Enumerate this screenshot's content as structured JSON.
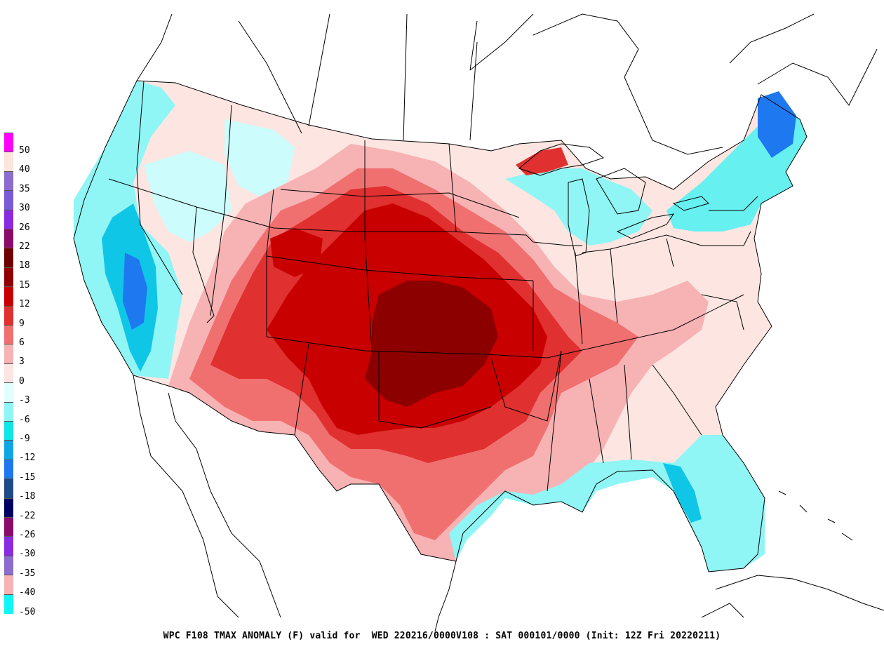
{
  "caption": "WPC F108 TMAX ANOMALY (F) valid for  WED 220216/0000V108 : SAT 000101/0000 (Init: 12Z Fri 20220211)",
  "legend": {
    "labels": [
      "50",
      "40",
      "35",
      "30",
      "26",
      "22",
      "18",
      "15",
      "12",
      "9",
      "6",
      "3",
      "0",
      "-3",
      "-6",
      "-9",
      "-12",
      "-15",
      "-18",
      "-22",
      "-26",
      "-30",
      "-35",
      "-40",
      "-50"
    ],
    "colors": [
      "#ff00ff",
      "#ffe4dc",
      "#8c6ccc",
      "#7a5ad6",
      "#8a2be2",
      "#8b0a6a",
      "#6e0000",
      "#900000",
      "#c80000",
      "#e03030",
      "#f07070",
      "#f7b2b4",
      "#fde6e2",
      "#e0ffff",
      "#90f5f5",
      "#10e6e6",
      "#10a6e6",
      "#1e78f0",
      "#1e4a88",
      "#000060",
      "#8b0a6a",
      "#8a2be2",
      "#8c6ccc",
      "#f7b2b4",
      "#10f5f5"
    ]
  },
  "colors": {
    "coastline": "#000000",
    "cold_light": "#ccfcfc",
    "cold_medium": "#66f0f0",
    "cold_strong": "#20c0f0",
    "cold_deep": "#1e78f0",
    "warm_light": "#fde6e2",
    "warm_low": "#f7b2b4",
    "warm_medium": "#f07070",
    "warm_high": "#e03030",
    "warm_very": "#c80000",
    "warm_extreme": "#8c0000"
  }
}
